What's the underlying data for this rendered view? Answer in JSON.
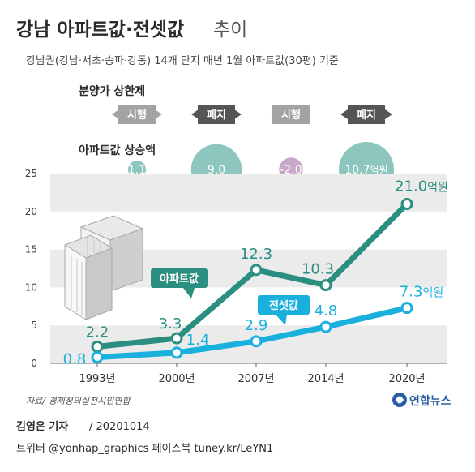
{
  "header": {
    "title_main": "강남 아파트값·전셋값",
    "title_tail": "추이",
    "subtitle": "강남권(강남·서초·송파·강동) 14개 단지 매년 1월 아파트값(30평) 기준"
  },
  "policy": {
    "title": "분양가 상한제",
    "periods": [
      {
        "label": "시행",
        "active": true
      },
      {
        "label": "폐지",
        "active": false
      },
      {
        "label": "시행",
        "active": true
      },
      {
        "label": "폐지",
        "active": false
      }
    ]
  },
  "increase": {
    "title": "아파트값 상승액",
    "values": [
      "1.1",
      "9.0",
      "-2.0",
      "10.7"
    ],
    "unit_last": "억원"
  },
  "chart_data": {
    "type": "line",
    "categories": [
      "1993년",
      "2000년",
      "2007년",
      "2014년",
      "2020년"
    ],
    "ylim": [
      0,
      25
    ],
    "yticks": [
      0,
      5,
      10,
      15,
      20,
      25
    ],
    "ytick_labels": [
      "0",
      "5",
      "10",
      "15",
      "20",
      "25"
    ],
    "unit": "억원",
    "grid": "alternating bands",
    "series": [
      {
        "name": "아파트값",
        "values": [
          2.2,
          3.3,
          12.3,
          10.3,
          21.0
        ],
        "labels": [
          "2.2",
          "3.3",
          "12.3",
          "10.3",
          "21.0"
        ],
        "color": "#2a8f80"
      },
      {
        "name": "전셋값",
        "values": [
          0.8,
          1.4,
          2.9,
          4.8,
          7.3
        ],
        "labels": [
          "0.8",
          "1.4",
          "2.9",
          "4.8",
          "7.3"
        ],
        "color": "#1ab0dd"
      }
    ]
  },
  "footer": {
    "source": "자료/ 경제정의실천시민연합",
    "logo": "연합뉴스",
    "author": "김영은 기자",
    "date": "/ 20201014",
    "social": "트위터 @yonhap_graphics  페이스북 tuney.kr/LeYN1"
  },
  "colors": {
    "apt": "#2a8f80",
    "jeonse": "#1ab0dd",
    "circle_teal": "#8dc6bf",
    "circle_purple": "#c7a8c9",
    "arrow_active": "#a3a3a3",
    "arrow_inactive": "#555555",
    "band": "#ebebeb"
  },
  "icons": [
    "apartment-building-icon",
    "yonhap-logo-icon"
  ]
}
